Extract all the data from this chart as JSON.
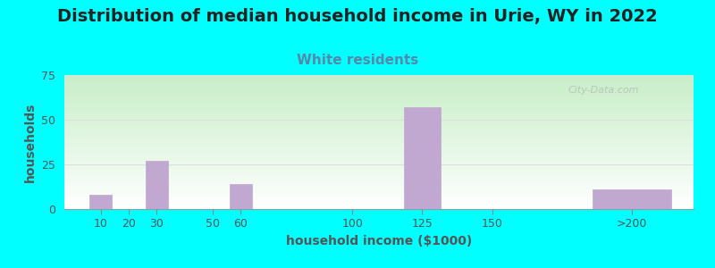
{
  "title": "Distribution of median household income in Urie, WY in 2022",
  "subtitle": "White residents",
  "xlabel": "household income ($1000)",
  "ylabel": "households",
  "background_color": "#00FFFF",
  "bar_color": "#C0A8D0",
  "bar_edgecolor": "#C0A8D0",
  "title_fontsize": 14,
  "subtitle_fontsize": 11,
  "subtitle_color": "#5588AA",
  "axis_label_fontsize": 10,
  "tick_fontsize": 9,
  "tick_color": "#555555",
  "grid_color": "#dddddd",
  "ylim": [
    0,
    75
  ],
  "yticks": [
    0,
    25,
    50,
    75
  ],
  "bar_positions": [
    10,
    30,
    60,
    125,
    200
  ],
  "bar_heights": [
    8,
    27,
    14,
    57,
    11
  ],
  "bar_widths": [
    8,
    8,
    8,
    13,
    28
  ],
  "xlim": [
    -3,
    222
  ],
  "xtick_positions": [
    10,
    20,
    30,
    50,
    60,
    100,
    125,
    150,
    200
  ],
  "xtick_labels": [
    "10",
    "20",
    "30",
    "50",
    "60",
    "100",
    "125",
    "150",
    ">200"
  ],
  "watermark": "City-Data.com"
}
